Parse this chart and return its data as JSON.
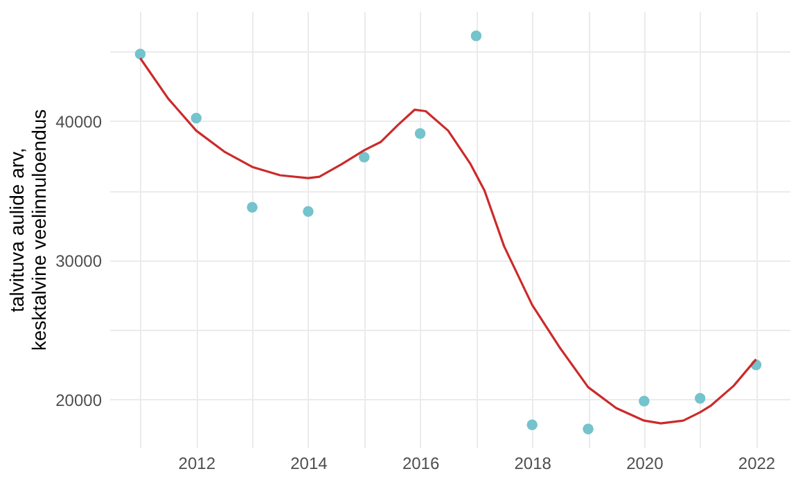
{
  "chart_data": {
    "type": "scatter",
    "ylabel": "talvituva aulide arv,\nkesktalvine veelinnuloendus",
    "xlim": [
      2010.45,
      2022.6
    ],
    "ylim": [
      16570,
      47880
    ],
    "xticks": [
      {
        "value": 2011,
        "label": null
      },
      2012,
      {
        "value": 2013,
        "label": null
      },
      2014,
      {
        "value": 2015,
        "label": null
      },
      2016,
      {
        "value": 2017,
        "label": null
      },
      2018,
      {
        "value": 2019,
        "label": null
      },
      2020,
      {
        "value": 2021,
        "label": null
      },
      2022
    ],
    "yticks": [
      20000,
      {
        "value": 25000,
        "label": null
      },
      30000,
      {
        "value": 35000,
        "label": null
      },
      40000,
      {
        "value": 45000,
        "label": null
      }
    ],
    "grid": true,
    "marker": "circle",
    "series": [
      {
        "color": "#75c3cc",
        "x": [
          2011,
          2012,
          2013,
          2014,
          2015,
          2016,
          2017,
          2018,
          2019,
          2020,
          2021,
          2022
        ],
        "values": [
          44800,
          40200,
          33800,
          33500,
          37400,
          39100,
          46100,
          18200,
          17900,
          19900,
          20100,
          22500
        ]
      },
      {
        "type": "line",
        "color": "#cc2a2a",
        "marker": "none",
        "line_style": "solid",
        "x": [
          2011,
          2011.5,
          2012,
          2012.5,
          2013,
          2013.5,
          2014,
          2014.2,
          2014.6,
          2015,
          2015.3,
          2015.6,
          2015.9,
          2016.1,
          2016.5,
          2016.9,
          2017.15,
          2017.5,
          2018,
          2018.5,
          2019,
          2019.5,
          2020,
          2020.3,
          2020.7,
          2021,
          2021.2,
          2021.6,
          2022
        ],
        "values": [
          44500,
          41600,
          39300,
          37800,
          36700,
          36100,
          35900,
          36000,
          36900,
          37900,
          38500,
          39700,
          40800,
          40700,
          39300,
          36900,
          35000,
          31000,
          26800,
          23700,
          20900,
          19400,
          18500,
          18300,
          18500,
          19100,
          19600,
          21000,
          22900
        ]
      }
    ]
  }
}
